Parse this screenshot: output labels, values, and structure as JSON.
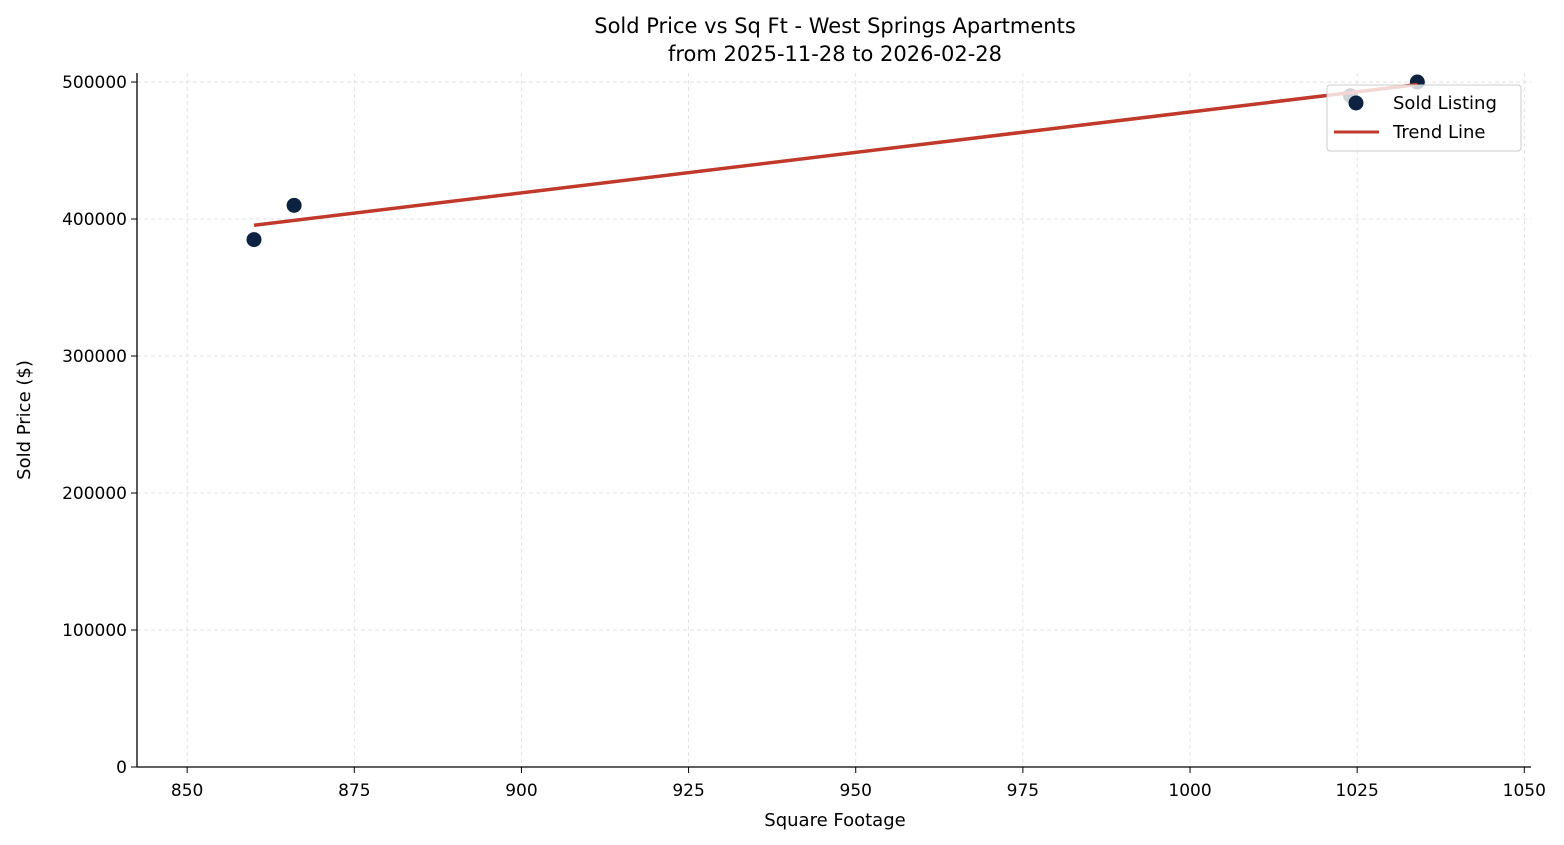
{
  "chart_data": {
    "type": "scatter",
    "title": "Sold Price vs Sq Ft - West Springs Apartments",
    "subtitle": "from 2025-11-28 to 2026-02-28",
    "xlabel": "Square Footage",
    "ylabel": "Sold Price ($)",
    "xlim": [
      842.5,
      1051
    ],
    "ylim": [
      0,
      506600
    ],
    "xticks": [
      850,
      875,
      900,
      925,
      950,
      975,
      1000,
      1025,
      1050
    ],
    "yticks": [
      0,
      100000,
      200000,
      300000,
      400000,
      500000
    ],
    "grid": true,
    "legend_position": "top-right",
    "series": [
      {
        "name": "Sold Listing",
        "kind": "scatter",
        "color": "#0d2240",
        "x": [
          860,
          866,
          1024,
          1034
        ],
        "y": [
          385000,
          410000,
          490000,
          500000
        ]
      },
      {
        "name": "Trend Line",
        "kind": "line",
        "color": "#c0392b",
        "fit": "linear"
      }
    ]
  }
}
